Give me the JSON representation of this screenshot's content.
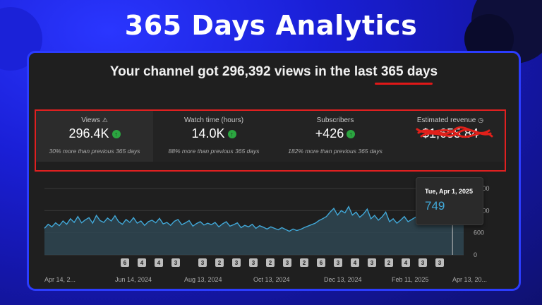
{
  "headline": "365 Days Analytics",
  "summary": "Your channel got 296,392 views in the last 365 days",
  "metrics": [
    {
      "title": "Views",
      "value": "296.4K",
      "sub": "30% more than previous 365 days",
      "icon": "warning-icon"
    },
    {
      "title": "Watch time (hours)",
      "value": "14.0K",
      "sub": "88% more than previous 365 days"
    },
    {
      "title": "Subscribers",
      "value": "+426",
      "sub": "182% more than previous 365 days"
    },
    {
      "title": "Estimated revenue",
      "value": "$1,655.84",
      "icon": "clock-icon",
      "redacted": true
    }
  ],
  "tooltip": {
    "date": "Tue, Apr 1, 2025",
    "value": "749"
  },
  "colors": {
    "accent": "#41a8d8",
    "positive": "#2ba640",
    "highlight": "#e02020",
    "frame": "#2b3cff"
  },
  "chart_data": {
    "type": "area",
    "y_ticks": [
      "0",
      "600",
      "1,200",
      "1,800"
    ],
    "ylim": [
      0,
      1800
    ],
    "x_labels": [
      "Apr 14, 2...",
      "Jun 14, 2024",
      "Aug 13, 2024",
      "Oct 13, 2024",
      "Dec 13, 2024",
      "Feb 11, 2025",
      "Apr 13, 20..."
    ],
    "markers": [
      "6",
      "4",
      "4",
      "3",
      "3",
      "2",
      "3",
      "3",
      "2",
      "3",
      "2",
      "6",
      "3",
      "4",
      "3",
      "2",
      "4",
      "3",
      "3"
    ],
    "values": [
      720,
      830,
      760,
      870,
      790,
      920,
      830,
      980,
      880,
      1040,
      870,
      950,
      1010,
      860,
      1070,
      930,
      880,
      1000,
      920,
      1060,
      900,
      830,
      960,
      880,
      1010,
      860,
      920,
      800,
      900,
      940,
      870,
      990,
      840,
      880,
      800,
      910,
      960,
      820,
      870,
      930,
      780,
      850,
      900,
      810,
      860,
      820,
      880,
      760,
      840,
      900,
      780,
      820,
      870,
      740,
      800,
      760,
      830,
      720,
      790,
      750,
      700,
      760,
      720,
      680,
      740,
      690,
      640,
      700,
      660,
      690,
      740,
      780,
      820,
      860,
      930,
      980,
      1040,
      1160,
      1260,
      1080,
      1200,
      1140,
      1310,
      1080,
      1160,
      1020,
      1110,
      1240,
      980,
      1070,
      940,
      1030,
      1160,
      900,
      980,
      860,
      940,
      1040,
      900,
      960,
      1020,
      880,
      940,
      1060,
      900,
      960,
      1000,
      930,
      880,
      990,
      960,
      1040,
      980,
      940
    ]
  }
}
